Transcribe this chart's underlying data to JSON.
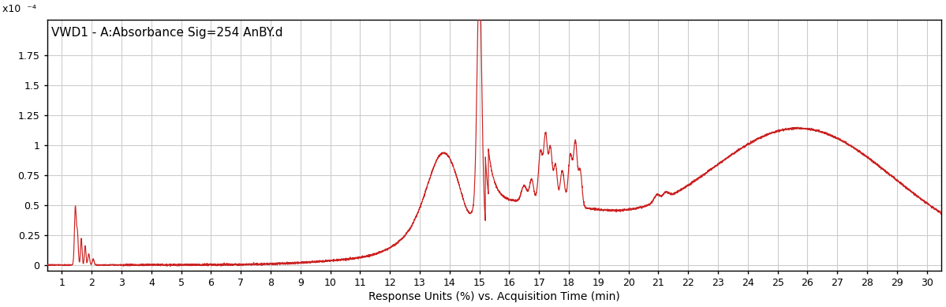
{
  "title": "VWD1 - A:Absorbance Sig=254 AnBY.d",
  "xlabel": "Response Units (%) vs. Acquisition Time (min)",
  "line_color": "#cc2222",
  "background_color": "#ffffff",
  "grid_color": "#cccccc",
  "xlim": [
    0.5,
    30.5
  ],
  "ylim": [
    -0.05,
    2.05
  ],
  "yticks": [
    0,
    0.25,
    0.5,
    0.75,
    1.0,
    1.25,
    1.5,
    1.75
  ],
  "ytick_labels": [
    "0",
    "0.25",
    "0.5",
    "0.75",
    "1",
    "1.25",
    "1.5",
    "1.75"
  ],
  "xticks": [
    1,
    2,
    3,
    4,
    5,
    6,
    7,
    8,
    9,
    10,
    11,
    12,
    13,
    14,
    15,
    16,
    17,
    18,
    19,
    20,
    21,
    22,
    23,
    24,
    25,
    26,
    27,
    28,
    29,
    30
  ],
  "figsize": [
    11.99,
    3.89
  ],
  "dpi": 100,
  "ylabel_text": "x10  ⁻⁴"
}
